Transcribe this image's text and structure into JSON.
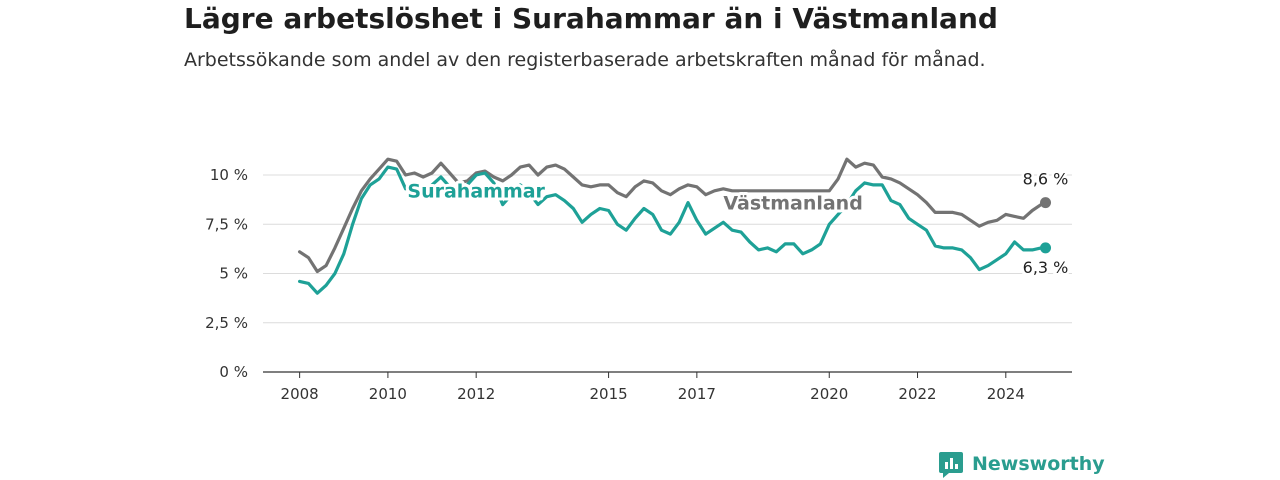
{
  "chart_data": {
    "type": "line",
    "title": "Lägre arbetslöshet i Surahammar än i Västmanland",
    "subtitle": "Arbetssökande som andel av den registerbaserade arbetskraften månad för månad.",
    "y_ticks": [
      "0 %",
      "2,5 %",
      "5 %",
      "7,5 %",
      "10 %"
    ],
    "y_tick_values": [
      0,
      2.5,
      5,
      7.5,
      10
    ],
    "x_ticks": [
      "2008",
      "2010",
      "2012",
      "2015",
      "2017",
      "2020",
      "2022",
      "2024"
    ],
    "x_tick_values": [
      2008,
      2010,
      2012,
      2015,
      2017,
      2020,
      2022,
      2024
    ],
    "xlim": [
      2007.17,
      2025.5
    ],
    "ylim": [
      0,
      10
    ],
    "grid": true,
    "series": [
      {
        "name": "Västmanland",
        "color": "#737373",
        "end_label": "8,6 %",
        "points": [
          [
            2008.0,
            6.1
          ],
          [
            2008.2,
            5.8
          ],
          [
            2008.4,
            5.1
          ],
          [
            2008.6,
            5.4
          ],
          [
            2008.8,
            6.3
          ],
          [
            2009.0,
            7.3
          ],
          [
            2009.2,
            8.3
          ],
          [
            2009.4,
            9.2
          ],
          [
            2009.6,
            9.8
          ],
          [
            2009.8,
            10.3
          ],
          [
            2010.0,
            10.8
          ],
          [
            2010.2,
            10.7
          ],
          [
            2010.4,
            10.0
          ],
          [
            2010.6,
            10.1
          ],
          [
            2010.8,
            9.9
          ],
          [
            2011.0,
            10.1
          ],
          [
            2011.2,
            10.6
          ],
          [
            2011.4,
            10.1
          ],
          [
            2011.6,
            9.6
          ],
          [
            2011.8,
            9.7
          ],
          [
            2012.0,
            10.1
          ],
          [
            2012.2,
            10.2
          ],
          [
            2012.4,
            9.9
          ],
          [
            2012.6,
            9.7
          ],
          [
            2012.8,
            10.0
          ],
          [
            2013.0,
            10.4
          ],
          [
            2013.2,
            10.5
          ],
          [
            2013.4,
            10.0
          ],
          [
            2013.6,
            10.4
          ],
          [
            2013.8,
            10.5
          ],
          [
            2014.0,
            10.3
          ],
          [
            2014.2,
            9.9
          ],
          [
            2014.4,
            9.5
          ],
          [
            2014.6,
            9.4
          ],
          [
            2014.8,
            9.5
          ],
          [
            2015.0,
            9.5
          ],
          [
            2015.2,
            9.1
          ],
          [
            2015.4,
            8.9
          ],
          [
            2015.6,
            9.4
          ],
          [
            2015.8,
            9.7
          ],
          [
            2016.0,
            9.6
          ],
          [
            2016.2,
            9.2
          ],
          [
            2016.4,
            9.0
          ],
          [
            2016.6,
            9.3
          ],
          [
            2016.8,
            9.5
          ],
          [
            2017.0,
            9.4
          ],
          [
            2017.2,
            9.0
          ],
          [
            2017.4,
            9.2
          ],
          [
            2017.6,
            9.3
          ],
          [
            2017.8,
            9.2
          ],
          [
            2018.1,
            9.2
          ],
          [
            2020.0,
            9.2
          ],
          [
            2020.2,
            9.8
          ],
          [
            2020.4,
            10.8
          ],
          [
            2020.6,
            10.4
          ],
          [
            2020.8,
            10.6
          ],
          [
            2021.0,
            10.5
          ],
          [
            2021.2,
            9.9
          ],
          [
            2021.4,
            9.8
          ],
          [
            2021.6,
            9.6
          ],
          [
            2021.8,
            9.3
          ],
          [
            2022.0,
            9.0
          ],
          [
            2022.2,
            8.6
          ],
          [
            2022.4,
            8.1
          ],
          [
            2022.6,
            8.1
          ],
          [
            2022.8,
            8.1
          ],
          [
            2023.0,
            8.0
          ],
          [
            2023.2,
            7.7
          ],
          [
            2023.4,
            7.4
          ],
          [
            2023.6,
            7.6
          ],
          [
            2023.8,
            7.7
          ],
          [
            2024.0,
            8.0
          ],
          [
            2024.2,
            7.9
          ],
          [
            2024.4,
            7.8
          ],
          [
            2024.6,
            8.2
          ],
          [
            2024.8,
            8.5
          ],
          [
            2024.9,
            8.6
          ]
        ]
      },
      {
        "name": "Surahammar",
        "color": "#1ea197",
        "end_label": "6,3 %",
        "points": [
          [
            2008.0,
            4.6
          ],
          [
            2008.2,
            4.5
          ],
          [
            2008.4,
            4.0
          ],
          [
            2008.6,
            4.4
          ],
          [
            2008.8,
            5.0
          ],
          [
            2009.0,
            6.0
          ],
          [
            2009.2,
            7.5
          ],
          [
            2009.4,
            8.8
          ],
          [
            2009.6,
            9.5
          ],
          [
            2009.8,
            9.8
          ],
          [
            2010.0,
            10.4
          ],
          [
            2010.2,
            10.3
          ],
          [
            2010.4,
            9.3
          ],
          [
            2010.6,
            9.4
          ],
          [
            2010.8,
            9.2
          ],
          [
            2011.0,
            9.5
          ],
          [
            2011.2,
            9.9
          ],
          [
            2011.4,
            9.4
          ],
          [
            2011.6,
            8.9
          ],
          [
            2011.8,
            9.5
          ],
          [
            2012.0,
            10.0
          ],
          [
            2012.2,
            10.1
          ],
          [
            2012.4,
            9.6
          ],
          [
            2012.6,
            8.5
          ],
          [
            2012.8,
            9.0
          ],
          [
            2013.0,
            9.5
          ],
          [
            2013.2,
            9.1
          ],
          [
            2013.4,
            8.5
          ],
          [
            2013.6,
            8.9
          ],
          [
            2013.8,
            9.0
          ],
          [
            2014.0,
            8.7
          ],
          [
            2014.2,
            8.3
          ],
          [
            2014.4,
            7.6
          ],
          [
            2014.6,
            8.0
          ],
          [
            2014.8,
            8.3
          ],
          [
            2015.0,
            8.2
          ],
          [
            2015.2,
            7.5
          ],
          [
            2015.4,
            7.2
          ],
          [
            2015.6,
            7.8
          ],
          [
            2015.8,
            8.3
          ],
          [
            2016.0,
            8.0
          ],
          [
            2016.2,
            7.2
          ],
          [
            2016.4,
            7.0
          ],
          [
            2016.6,
            7.6
          ],
          [
            2016.8,
            8.6
          ],
          [
            2017.0,
            7.7
          ],
          [
            2017.2,
            7.0
          ],
          [
            2017.4,
            7.3
          ],
          [
            2017.6,
            7.6
          ],
          [
            2017.8,
            7.2
          ],
          [
            2018.0,
            7.1
          ],
          [
            2018.2,
            6.6
          ],
          [
            2018.4,
            6.2
          ],
          [
            2018.6,
            6.3
          ],
          [
            2018.8,
            6.1
          ],
          [
            2019.0,
            6.5
          ],
          [
            2019.2,
            6.5
          ],
          [
            2019.4,
            6.0
          ],
          [
            2019.6,
            6.2
          ],
          [
            2019.8,
            6.5
          ],
          [
            2020.0,
            7.5
          ],
          [
            2020.2,
            8.0
          ],
          [
            2020.4,
            8.5
          ],
          [
            2020.6,
            9.2
          ],
          [
            2020.8,
            9.6
          ],
          [
            2021.0,
            9.5
          ],
          [
            2021.2,
            9.5
          ],
          [
            2021.4,
            8.7
          ],
          [
            2021.6,
            8.5
          ],
          [
            2021.8,
            7.8
          ],
          [
            2022.0,
            7.5
          ],
          [
            2022.2,
            7.2
          ],
          [
            2022.4,
            6.4
          ],
          [
            2022.6,
            6.3
          ],
          [
            2022.8,
            6.3
          ],
          [
            2023.0,
            6.2
          ],
          [
            2023.2,
            5.8
          ],
          [
            2023.4,
            5.2
          ],
          [
            2023.6,
            5.4
          ],
          [
            2023.8,
            5.7
          ],
          [
            2024.0,
            6.0
          ],
          [
            2024.2,
            6.6
          ],
          [
            2024.4,
            6.2
          ],
          [
            2024.6,
            6.2
          ],
          [
            2024.8,
            6.3
          ],
          [
            2024.9,
            6.3
          ]
        ]
      }
    ]
  },
  "brand": {
    "name": "Newsworthy"
  }
}
